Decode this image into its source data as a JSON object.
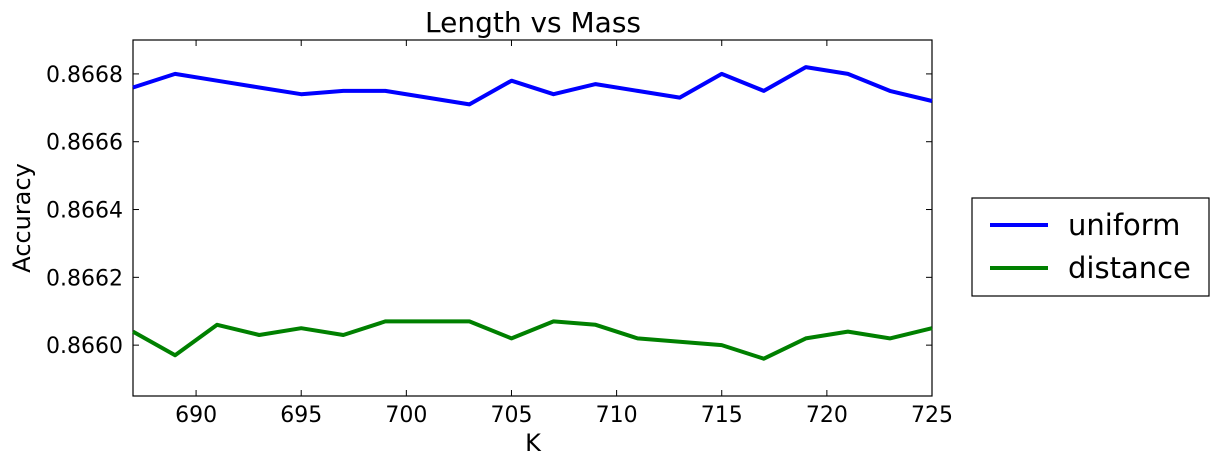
{
  "chart_data": {
    "type": "line",
    "title": "Length vs Mass",
    "xlabel": "K",
    "ylabel": "Accuracy",
    "xlim": [
      687,
      725
    ],
    "ylim": [
      0.86585,
      0.8669
    ],
    "x_ticks": [
      690,
      695,
      700,
      705,
      710,
      715,
      720,
      725
    ],
    "y_ticks": [
      0.866,
      0.8662,
      0.8664,
      0.8666,
      0.8668
    ],
    "y_tick_labels": [
      "0.8660",
      "0.8662",
      "0.8664",
      "0.8666",
      "0.8668"
    ],
    "grid": false,
    "legend_position": "outside-right",
    "x": [
      687,
      689,
      691,
      693,
      695,
      697,
      699,
      701,
      703,
      705,
      707,
      709,
      711,
      713,
      715,
      717,
      719,
      721,
      723,
      725
    ],
    "series": [
      {
        "name": "uniform",
        "color": "#0000ff",
        "values": [
          0.86676,
          0.8668,
          0.86678,
          0.86676,
          0.86674,
          0.86675,
          0.86675,
          0.86673,
          0.86671,
          0.86678,
          0.86674,
          0.86677,
          0.86675,
          0.86673,
          0.8668,
          0.86675,
          0.86682,
          0.8668,
          0.86675,
          0.86672
        ]
      },
      {
        "name": "distance",
        "color": "#008000",
        "values": [
          0.86604,
          0.86597,
          0.86606,
          0.86603,
          0.86605,
          0.86603,
          0.86607,
          0.86607,
          0.86607,
          0.86602,
          0.86607,
          0.86606,
          0.86602,
          0.86601,
          0.866,
          0.86596,
          0.86602,
          0.86604,
          0.86602,
          0.86605
        ]
      }
    ]
  }
}
